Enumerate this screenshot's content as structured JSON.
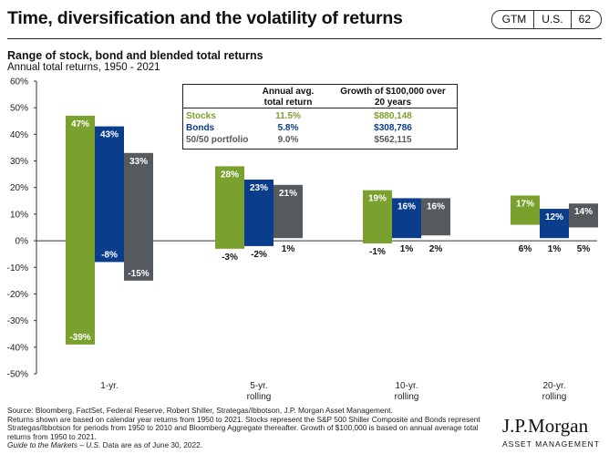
{
  "header": {
    "title": "Time, diversification and the volatility of returns",
    "badges": [
      "GTM",
      "U.S.",
      "62"
    ]
  },
  "subtitle": "Range of stock, bond and blended total returns",
  "sub_subtitle": "Annual total returns, 1950 - 2021",
  "table": {
    "col1_header_line1": "Annual avg.",
    "col1_header_line2": "total return",
    "col2_header_line1": "Growth of $100,000 over",
    "col2_header_line2": "20 years",
    "rows": [
      {
        "name": "Stocks",
        "avg": "11.5%",
        "growth": "$880,148",
        "color": "#7aa12d"
      },
      {
        "name": "Bonds",
        "avg": "5.8%",
        "growth": "$308,786",
        "color": "#0a3d8c"
      },
      {
        "name": "50/50 portfolio",
        "avg": "9.0%",
        "growth": "$562,115",
        "color": "#555a5f"
      }
    ]
  },
  "chart_data": {
    "type": "bar",
    "chart_kind": "floating range bars",
    "ylim": [
      -50,
      60
    ],
    "y_ticks": [
      "60%",
      "50%",
      "40%",
      "30%",
      "20%",
      "10%",
      "0%",
      "-10%",
      "-20%",
      "-30%",
      "-40%",
      "-50%"
    ],
    "categories": [
      "1-yr.",
      "5-yr. rolling",
      "10-yr. rolling",
      "20-yr. rolling"
    ],
    "category_labels": [
      [
        "1-yr."
      ],
      [
        "5-yr.",
        "rolling"
      ],
      [
        "10-yr.",
        "rolling"
      ],
      [
        "20-yr.",
        "rolling"
      ]
    ],
    "series": [
      {
        "name": "Stocks",
        "color": "#7aa12d",
        "high": [
          47,
          28,
          19,
          17
        ],
        "low": [
          -39,
          -3,
          -1,
          6
        ],
        "high_labels": [
          "47%",
          "28%",
          "19%",
          "17%"
        ],
        "low_labels": [
          "-39%",
          "-3%",
          "-1%",
          "6%"
        ]
      },
      {
        "name": "Bonds",
        "color": "#0a3d8c",
        "high": [
          43,
          23,
          16,
          12
        ],
        "low": [
          -8,
          -2,
          1,
          1
        ],
        "high_labels": [
          "43%",
          "23%",
          "16%",
          "12%"
        ],
        "low_labels": [
          "-8%",
          "-2%",
          "1%",
          "1%"
        ]
      },
      {
        "name": "50/50 portfolio",
        "color": "#555a5f",
        "high": [
          33,
          21,
          16,
          14
        ],
        "low": [
          -15,
          1,
          2,
          5
        ],
        "high_labels": [
          "33%",
          "21%",
          "16%",
          "14%"
        ],
        "low_labels": [
          "-15%",
          "1%",
          "2%",
          "5%"
        ]
      }
    ],
    "grid": false
  },
  "footer": {
    "lines": [
      "Source: Bloomberg, FactSet, Federal Reserve, Robert Shiller, Strategas/Ibbotson, J.P. Morgan Asset Management.",
      "Returns shown are based on calendar year returns from 1950 to 2021. Stocks represent the S&P 500 Shiller Composite and Bonds represent",
      "Strategas/Ibbotson for periods from 1950 to 2010 and Bloomberg Aggregate thereafter. Growth of $100,000 is based on annual average total",
      "returns from 1950 to 2021."
    ],
    "italic_line": "Guide to the Markets – U.S.",
    "date_line": " Data are as of June 30, 2022."
  },
  "logo": {
    "name": "J.P.Morgan",
    "tagline": "ASSET MANAGEMENT"
  }
}
